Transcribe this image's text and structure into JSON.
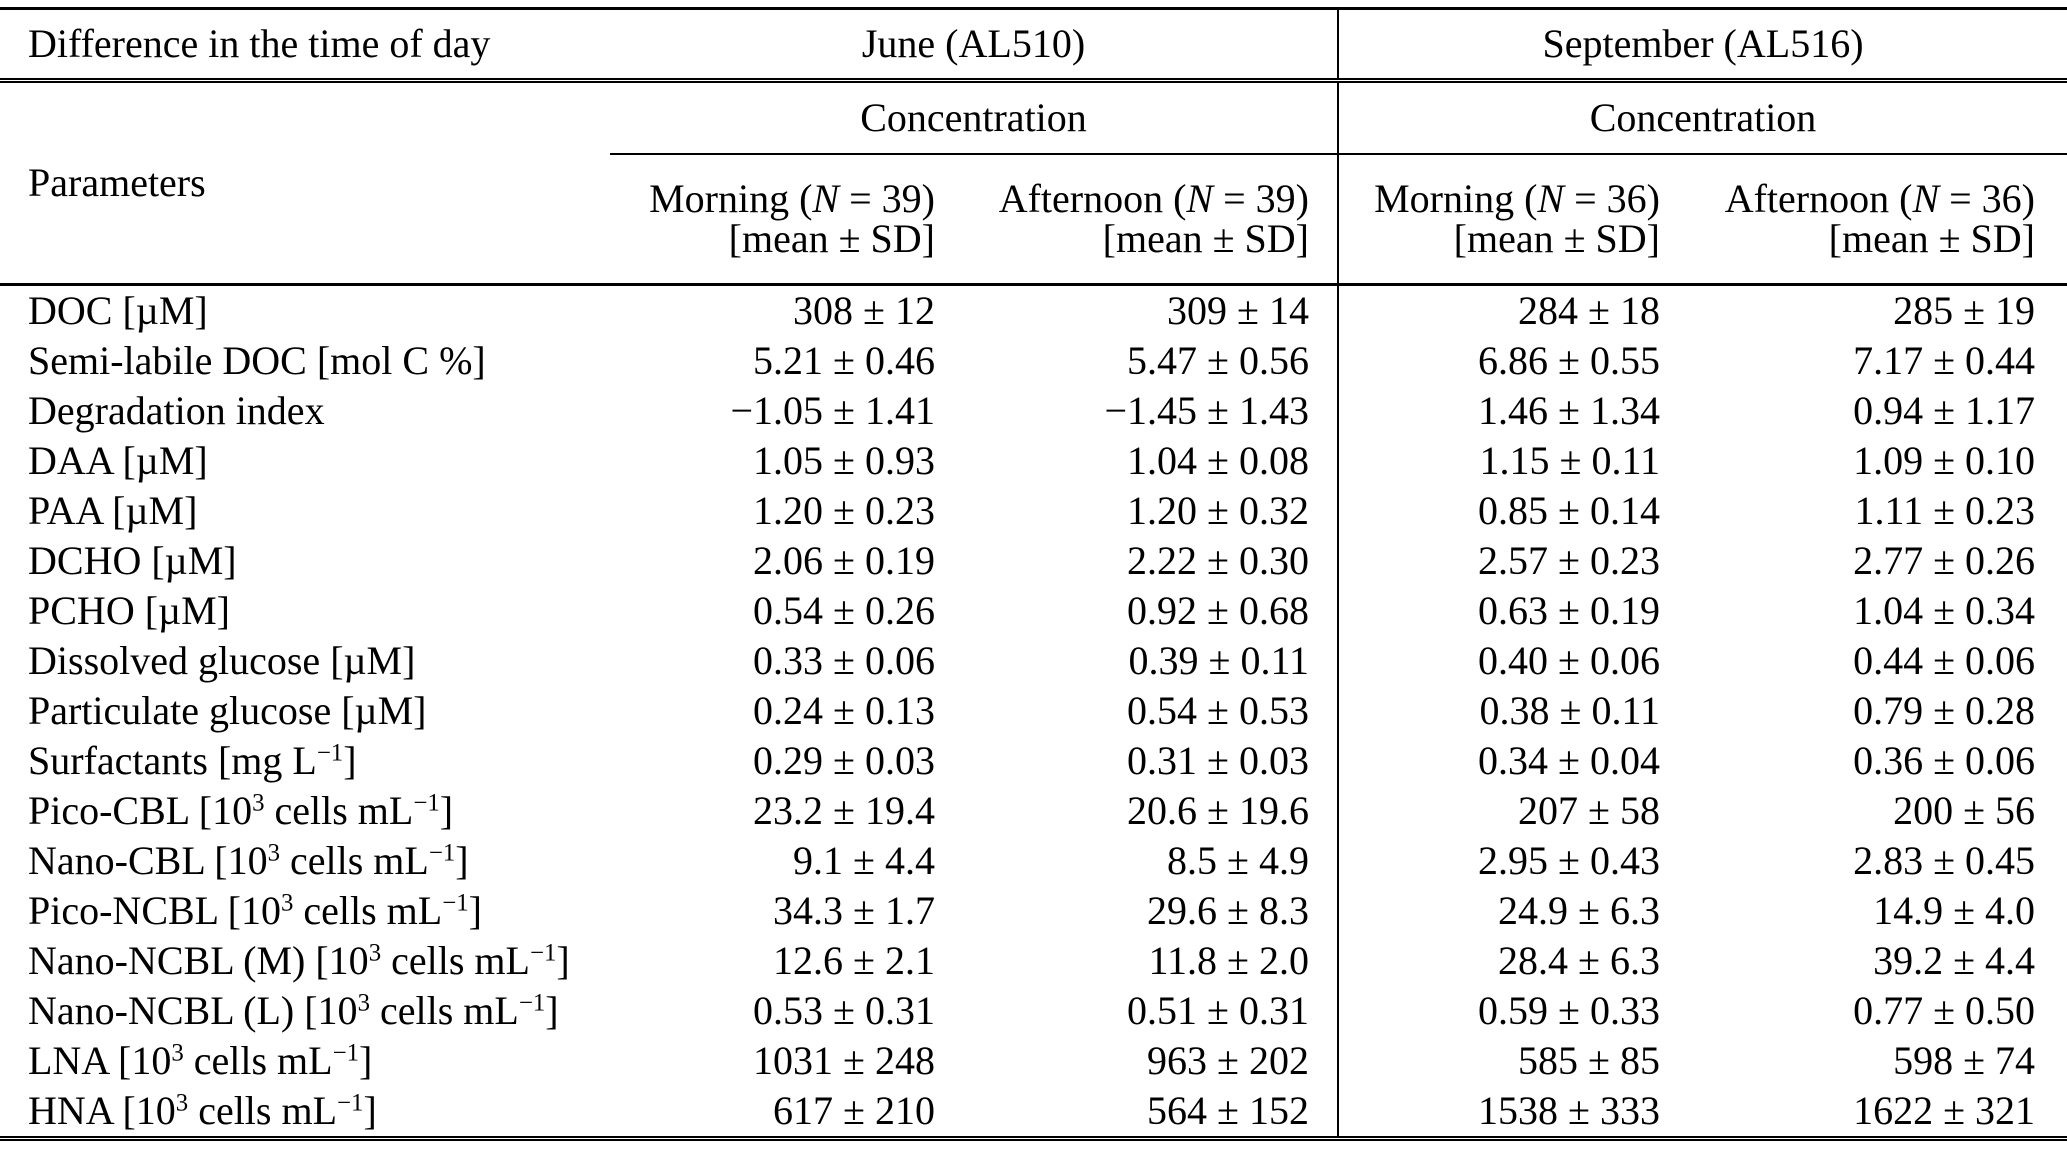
{
  "table": {
    "corner_label": "Difference in the time of day",
    "parameters_label": "Parameters",
    "groups": [
      {
        "label": "June (AL510)",
        "sub_label": "Concentration"
      },
      {
        "label": "September (AL516)",
        "sub_label": "Concentration"
      }
    ],
    "columns": [
      {
        "line1": "Morning (*N* = 39)",
        "line2": "[mean ± SD]"
      },
      {
        "line1": "Afternoon (*N* = 39)",
        "line2": "[mean ± SD]"
      },
      {
        "line1": "Morning (*N* = 36)",
        "line2": "[mean ± SD]"
      },
      {
        "line1": "Afternoon (*N* = 36)",
        "line2": "[mean ± SD]"
      }
    ],
    "rows": [
      {
        "parameter": "DOC [µM]",
        "values": [
          "308 ± 12",
          "309 ± 14",
          "284 ± 18",
          "285 ± 19"
        ]
      },
      {
        "parameter": "Semi-labile DOC [mol C %]",
        "values": [
          "5.21 ± 0.46",
          "5.47 ± 0.56",
          "6.86 ± 0.55",
          "7.17 ± 0.44"
        ]
      },
      {
        "parameter": "Degradation index",
        "values": [
          "−1.05 ± 1.41",
          "−1.45 ± 1.43",
          "1.46 ± 1.34",
          "0.94 ± 1.17"
        ]
      },
      {
        "parameter": "DAA [µM]",
        "values": [
          "1.05 ± 0.93",
          "1.04 ± 0.08",
          "1.15 ± 0.11",
          "1.09 ± 0.10"
        ]
      },
      {
        "parameter": "PAA [µM]",
        "values": [
          "1.20 ± 0.23",
          "1.20 ± 0.32",
          "0.85 ± 0.14",
          "1.11 ± 0.23"
        ]
      },
      {
        "parameter": "DCHO [µM]",
        "values": [
          "2.06 ± 0.19",
          "2.22 ± 0.30",
          "2.57 ± 0.23",
          "2.77 ± 0.26"
        ]
      },
      {
        "parameter": "PCHO [µM]",
        "values": [
          "0.54 ± 0.26",
          "0.92 ± 0.68",
          "0.63 ± 0.19",
          "1.04 ± 0.34"
        ]
      },
      {
        "parameter": "Dissolved glucose [µM]",
        "values": [
          "0.33 ± 0.06",
          "0.39 ± 0.11",
          "0.40 ± 0.06",
          "0.44 ± 0.06"
        ]
      },
      {
        "parameter": "Particulate glucose [µM]",
        "values": [
          "0.24 ± 0.13",
          "0.54 ± 0.53",
          "0.38 ± 0.11",
          "0.79 ± 0.28"
        ]
      },
      {
        "parameter": "Surfactants [mg L^{−1}]",
        "values": [
          "0.29 ± 0.03",
          "0.31 ± 0.03",
          "0.34 ± 0.04",
          "0.36 ± 0.06"
        ]
      },
      {
        "parameter": "Pico-CBL [10^{3} cells mL^{−1}]",
        "values": [
          "23.2 ± 19.4",
          "20.6 ± 19.6",
          "207 ± 58",
          "200 ± 56"
        ]
      },
      {
        "parameter": "Nano-CBL [10^{3} cells mL^{−1}]",
        "values": [
          "9.1 ± 4.4",
          "8.5 ± 4.9",
          "2.95 ± 0.43",
          "2.83 ± 0.45"
        ]
      },
      {
        "parameter": "Pico-NCBL [10^{3} cells mL^{−1}]",
        "values": [
          "34.3 ± 1.7",
          "29.6 ± 8.3",
          "24.9 ± 6.3",
          "14.9 ± 4.0"
        ]
      },
      {
        "parameter": "Nano-NCBL (M) [10^{3} cells mL^{−1}]",
        "values": [
          "12.6 ± 2.1",
          "11.8 ± 2.0",
          "28.4 ± 6.3",
          "39.2 ± 4.4"
        ]
      },
      {
        "parameter": "Nano-NCBL (L) [10^{3} cells mL^{−1}]",
        "values": [
          "0.53 ± 0.31",
          "0.51 ± 0.31",
          "0.59 ± 0.33",
          "0.77 ± 0.50"
        ]
      },
      {
        "parameter": "LNA [10^{3} cells mL^{−1}]",
        "values": [
          "1031 ± 248",
          "963 ± 202",
          "585 ± 85",
          "598 ± 74"
        ]
      },
      {
        "parameter": "HNA [10^{3} cells mL^{−1}]",
        "values": [
          "617 ± 210",
          "564 ± 152",
          "1538 ± 333",
          "1622 ± 321"
        ]
      }
    ]
  }
}
